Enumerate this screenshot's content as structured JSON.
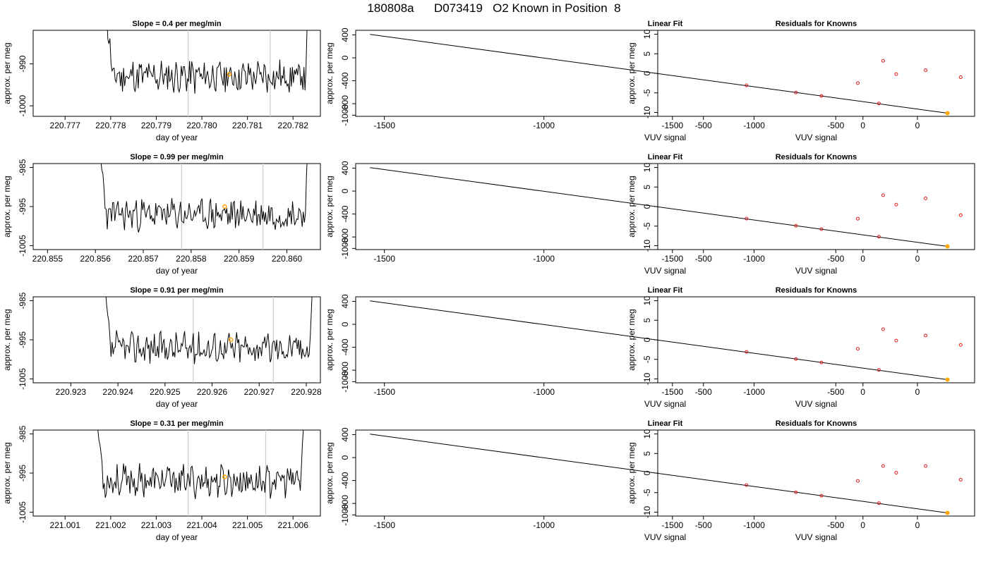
{
  "page_title": "180808a      D073419   O2 Known in Position  8",
  "chart_data": [
    {
      "type": "line",
      "title": "Slope =  0.4  per meg/min",
      "xlabel": "day of year",
      "ylabel": "approx. per meg",
      "xlim": [
        220.7763,
        220.7826
      ],
      "ylim": [
        -1002.5,
        -982
      ],
      "xticks": [
        "220.777",
        "220.778",
        "220.779",
        "220.780",
        "220.781",
        "220.782"
      ],
      "yticks": [
        "-1000",
        "-990"
      ],
      "vlines": [
        220.7797,
        220.7815
      ],
      "marker": {
        "x": 220.7806,
        "y": -992.5
      },
      "trace_base": -993,
      "trace_jitter": 7,
      "trace_range": [
        220.7778,
        220.7824
      ],
      "seed": 11
    },
    {
      "type": "line",
      "title": "Linear Fit",
      "xlabel": "VUV signal",
      "ylabel": "approx. per meg",
      "xlim": [
        -1590,
        350
      ],
      "ylim": [
        -1020,
        480
      ],
      "xticks": [
        "-1500",
        "-1000",
        "-500",
        "0"
      ],
      "yticks": [
        "-1000",
        "-800",
        "-400",
        "0",
        "400"
      ],
      "line": {
        "x": [
          -1545,
          265
        ],
        "y": [
          410,
          -965
        ]
      },
      "points": {
        "x": [
          -365,
          -210,
          -130,
          50,
          265
        ],
        "y": [
          -480,
          -605,
          -665,
          -795,
          -965
        ]
      },
      "highlight": {
        "x": 265,
        "y": -965
      }
    },
    {
      "type": "scatter",
      "title": "Residuals for Knowns",
      "xlabel": "VUV signal",
      "ylabel": "approx. per meg",
      "xlim": [
        -1590,
        350
      ],
      "ylim": [
        -11,
        11
      ],
      "xticks": [
        "-1500",
        "-1000",
        "-500",
        "0"
      ],
      "yticks": [
        "-10",
        "-5",
        "0",
        "5",
        "10"
      ],
      "points": {
        "x": [
          -365,
          -210,
          -130,
          50,
          265
        ],
        "y": [
          -2.5,
          3.2,
          -0.2,
          0.8,
          -1.0
        ]
      }
    },
    {
      "type": "line",
      "title": "Slope =  0.99  per meg/min",
      "xlabel": "day of year",
      "ylabel": "approx. per meg",
      "xlim": [
        220.8547,
        220.8607
      ],
      "ylim": [
        -1006,
        -984
      ],
      "xticks": [
        "220.855",
        "220.856",
        "220.857",
        "220.858",
        "220.859",
        "220.860"
      ],
      "yticks": [
        "-1005",
        "-995",
        "-985"
      ],
      "vlines": [
        220.8578,
        220.8595
      ],
      "marker": {
        "x": 220.8587,
        "y": -995
      },
      "trace_base": -997,
      "trace_jitter": 7,
      "trace_range": [
        220.856,
        220.8605
      ],
      "seed": 23
    },
    {
      "type": "line",
      "title": "Linear Fit",
      "xlabel": "VUV signal",
      "ylabel": "approx. per meg",
      "xlim": [
        -1590,
        350
      ],
      "ylim": [
        -1020,
        480
      ],
      "xticks": [
        "-1500",
        "-1000",
        "-500",
        "0"
      ],
      "yticks": [
        "-1000",
        "-800",
        "-400",
        "0",
        "400"
      ],
      "line": {
        "x": [
          -1545,
          265
        ],
        "y": [
          410,
          -965
        ]
      },
      "points": {
        "x": [
          -365,
          -210,
          -130,
          50,
          265
        ],
        "y": [
          -480,
          -605,
          -665,
          -795,
          -965
        ]
      },
      "highlight": {
        "x": 265,
        "y": -965
      }
    },
    {
      "type": "scatter",
      "title": "Residuals for Knowns",
      "xlabel": "VUV signal",
      "ylabel": "approx. per meg",
      "xlim": [
        -1590,
        350
      ],
      "ylim": [
        -11,
        11
      ],
      "xticks": [
        "-1500",
        "-1000",
        "-500",
        "0"
      ],
      "yticks": [
        "-10",
        "-5",
        "0",
        "5",
        "10"
      ],
      "points": {
        "x": [
          -365,
          -210,
          -130,
          50,
          265
        ],
        "y": [
          -3.1,
          2.9,
          0.5,
          2.1,
          -2.2
        ]
      }
    },
    {
      "type": "line",
      "title": "Slope =  0.91  per meg/min",
      "xlabel": "day of year",
      "ylabel": "approx. per meg",
      "xlim": [
        220.9222,
        220.9283
      ],
      "ylim": [
        -1006,
        -984
      ],
      "xticks": [
        "220.923",
        "220.924",
        "220.925",
        "220.926",
        "220.927",
        "220.928"
      ],
      "yticks": [
        "-1005",
        "-995",
        "-985"
      ],
      "vlines": [
        220.9256,
        220.9273
      ],
      "marker": {
        "x": 220.9264,
        "y": -995
      },
      "trace_base": -997,
      "trace_jitter": 7,
      "trace_range": [
        220.9236,
        220.9282
      ],
      "seed": 37
    },
    {
      "type": "line",
      "title": "Linear Fit",
      "xlabel": "VUV signal",
      "ylabel": "approx. per meg",
      "xlim": [
        -1590,
        350
      ],
      "ylim": [
        -1020,
        480
      ],
      "xticks": [
        "-1500",
        "-1000",
        "-500",
        "0"
      ],
      "yticks": [
        "-1000",
        "-800",
        "-400",
        "0",
        "400"
      ],
      "line": {
        "x": [
          -1545,
          265
        ],
        "y": [
          410,
          -965
        ]
      },
      "points": {
        "x": [
          -365,
          -210,
          -130,
          50,
          265
        ],
        "y": [
          -480,
          -605,
          -665,
          -795,
          -965
        ]
      },
      "highlight": {
        "x": 265,
        "y": -965
      }
    },
    {
      "type": "scatter",
      "title": "Residuals for Knowns",
      "xlabel": "VUV signal",
      "ylabel": "approx. per meg",
      "xlim": [
        -1590,
        350
      ],
      "ylim": [
        -11,
        11
      ],
      "xticks": [
        "-1500",
        "-1000",
        "-500",
        "0"
      ],
      "yticks": [
        "-10",
        "-5",
        "0",
        "5",
        "10"
      ],
      "points": {
        "x": [
          -365,
          -210,
          -130,
          50,
          265
        ],
        "y": [
          -2.3,
          2.7,
          -0.2,
          1.1,
          -1.3
        ]
      }
    },
    {
      "type": "line",
      "title": "Slope =  0.31  per meg/min",
      "xlabel": "day of year",
      "ylabel": "approx. per meg",
      "xlim": [
        221.0003,
        221.0066
      ],
      "ylim": [
        -1006,
        -984
      ],
      "xticks": [
        "221.001",
        "221.002",
        "221.003",
        "221.004",
        "221.005",
        "221.006"
      ],
      "yticks": [
        "-1005",
        "-995",
        "-985"
      ],
      "vlines": [
        221.0037,
        221.0054
      ],
      "marker": {
        "x": 221.0045,
        "y": -996
      },
      "trace_base": -997,
      "trace_jitter": 7,
      "trace_range": [
        221.0016,
        221.0063
      ],
      "seed": 53
    },
    {
      "type": "line",
      "title": "Linear Fit",
      "xlabel": "VUV signal",
      "ylabel": "approx. per meg",
      "xlim": [
        -1590,
        350
      ],
      "ylim": [
        -1020,
        480
      ],
      "xticks": [
        "-1500",
        "-1000",
        "-500",
        "0"
      ],
      "yticks": [
        "-1000",
        "-800",
        "-400",
        "0",
        "400"
      ],
      "line": {
        "x": [
          -1545,
          265
        ],
        "y": [
          410,
          -965
        ]
      },
      "points": {
        "x": [
          -365,
          -210,
          -130,
          50,
          265
        ],
        "y": [
          -480,
          -605,
          -665,
          -795,
          -965
        ]
      },
      "highlight": {
        "x": 265,
        "y": -965
      }
    },
    {
      "type": "scatter",
      "title": "Residuals for Knowns",
      "xlabel": "VUV signal",
      "ylabel": "approx. per meg",
      "xlim": [
        -1590,
        350
      ],
      "ylim": [
        -11,
        11
      ],
      "xticks": [
        "-1500",
        "-1000",
        "-500",
        "0"
      ],
      "yticks": [
        "-10",
        "-5",
        "0",
        "5",
        "10"
      ],
      "points": {
        "x": [
          -365,
          -210,
          -130,
          50,
          265
        ],
        "y": [
          -2.0,
          1.8,
          0.1,
          1.8,
          -1.7
        ]
      }
    }
  ],
  "colors": {
    "line": "#000000",
    "vline": "#cccccc",
    "marker": "#ffa500",
    "point": "#e41a1c"
  }
}
